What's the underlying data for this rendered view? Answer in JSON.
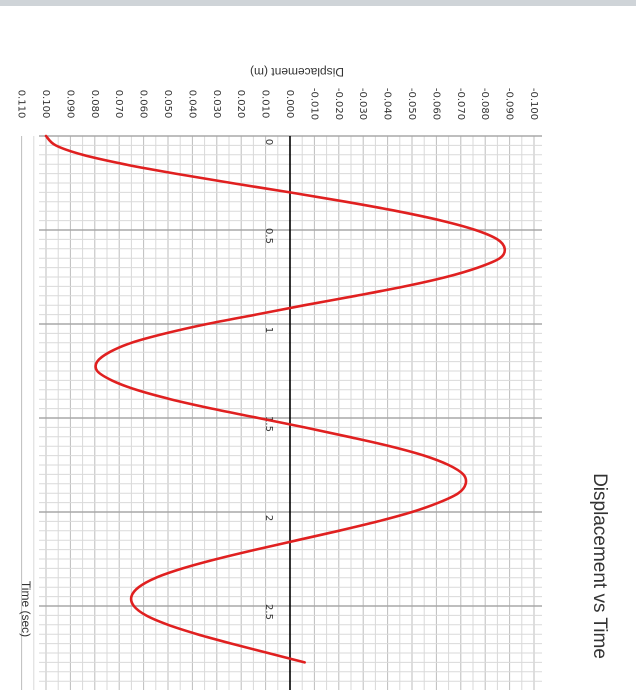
{
  "chart_data": {
    "type": "line",
    "title": "Displacement vs Time",
    "xlabel": "Time (sec)",
    "ylabel": "Displacement (m)",
    "xlim": [
      0,
      2.8
    ],
    "ylim": [
      -0.1,
      0.11
    ],
    "grid": true,
    "x_major_ticks": [
      "0",
      "0.5",
      "1",
      "1.5",
      "2",
      "2.5"
    ],
    "y_ticks": [
      "-0.100",
      "-0.090",
      "-0.080",
      "-0.070",
      "-0.060",
      "-0.050",
      "-0.040",
      "-0.030",
      "-0.020",
      "-0.010",
      "0.000",
      "0.010",
      "0.020",
      "0.030",
      "0.040",
      "0.050",
      "0.060",
      "0.070",
      "0.080",
      "0.090",
      "0.100",
      "0.110"
    ],
    "series": [
      {
        "color": "#e02020",
        "x": [
          0.0,
          0.05,
          0.1,
          0.15,
          0.2,
          0.25,
          0.3,
          0.35,
          0.4,
          0.45,
          0.5,
          0.55,
          0.6,
          0.65,
          0.7,
          0.75,
          0.8,
          0.85,
          0.9,
          0.95,
          1.0,
          1.05,
          1.1,
          1.15,
          1.2,
          1.25,
          1.3,
          1.35,
          1.4,
          1.45,
          1.5,
          1.55,
          1.6,
          1.65,
          1.7,
          1.75,
          1.8,
          1.85,
          1.9,
          1.95,
          2.0,
          2.05,
          2.1,
          2.15,
          2.2,
          2.25,
          2.3,
          2.35,
          2.4,
          2.45,
          2.5,
          2.55,
          2.6,
          2.65,
          2.7,
          2.75,
          2.8
        ],
        "y": [
          0.1,
          0.096,
          0.085,
          0.068,
          0.047,
          0.024,
          0.0,
          -0.023,
          -0.044,
          -0.062,
          -0.076,
          -0.085,
          -0.088,
          -0.086,
          -0.077,
          -0.064,
          -0.047,
          -0.027,
          -0.006,
          0.014,
          0.034,
          0.051,
          0.065,
          0.074,
          0.079,
          0.079,
          0.073,
          0.063,
          0.049,
          0.032,
          0.013,
          -0.006,
          -0.024,
          -0.041,
          -0.055,
          -0.065,
          -0.071,
          -0.072,
          -0.069,
          -0.061,
          -0.05,
          -0.036,
          -0.02,
          -0.003,
          0.014,
          0.03,
          0.044,
          0.055,
          0.062,
          0.065,
          0.064,
          0.059,
          0.05,
          0.038,
          0.024,
          0.009,
          -0.006
        ]
      }
    ]
  }
}
